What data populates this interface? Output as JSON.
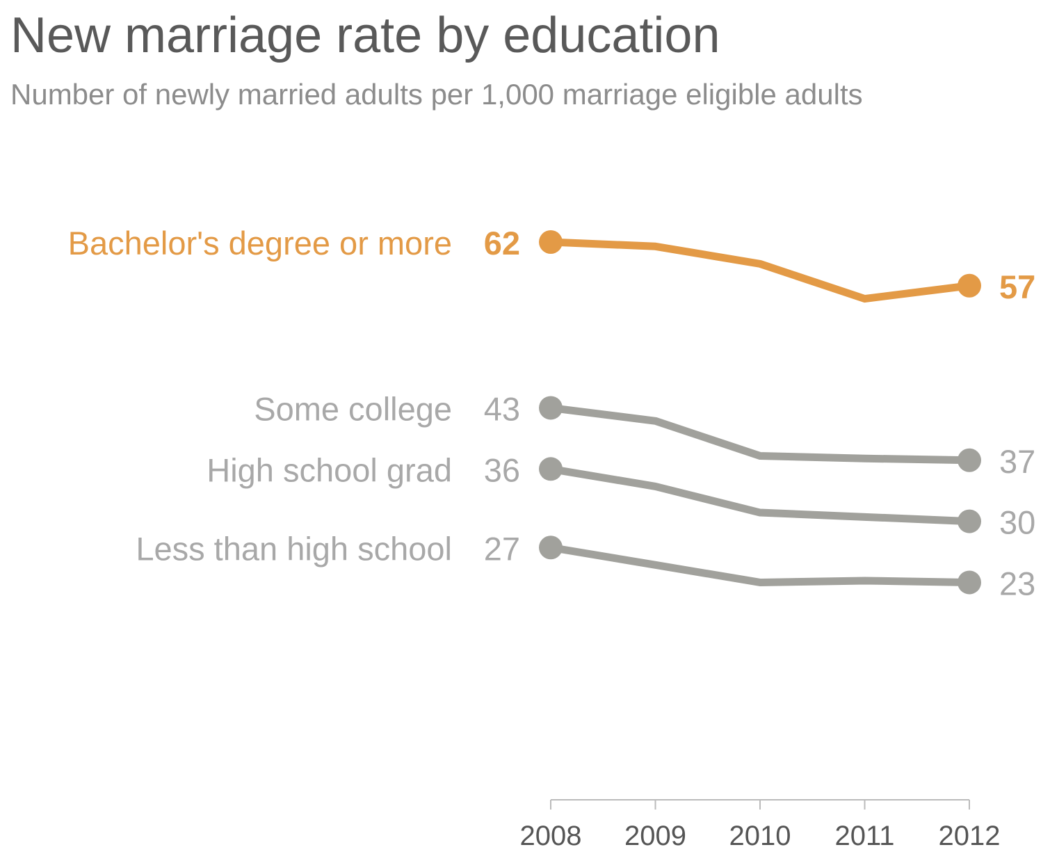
{
  "chart_data": {
    "type": "line",
    "title": "New marriage rate by education",
    "subtitle": "Number of newly married adults per 1,000 marriage eligible adults",
    "x": [
      "2008",
      "2009",
      "2010",
      "2011",
      "2012"
    ],
    "series": [
      {
        "name": "Bachelor's degree or more",
        "values": [
          62,
          61.5,
          59.5,
          55.5,
          57
        ],
        "start_label": "62",
        "end_label": "57",
        "color": "#e39a46",
        "highlight": true
      },
      {
        "name": "Some college",
        "values": [
          43,
          41.5,
          37.5,
          37.2,
          37
        ],
        "start_label": "43",
        "end_label": "37",
        "color": "#a1a19c",
        "highlight": false
      },
      {
        "name": "High school grad",
        "values": [
          36,
          34,
          31,
          30.5,
          30
        ],
        "start_label": "36",
        "end_label": "30",
        "color": "#a1a19c",
        "highlight": false
      },
      {
        "name": "Less than high school",
        "values": [
          27,
          25,
          23,
          23.2,
          23
        ],
        "start_label": "27",
        "end_label": "23",
        "color": "#a1a19c",
        "highlight": false
      }
    ],
    "grid": false,
    "legend": "direct labels at line starts"
  }
}
